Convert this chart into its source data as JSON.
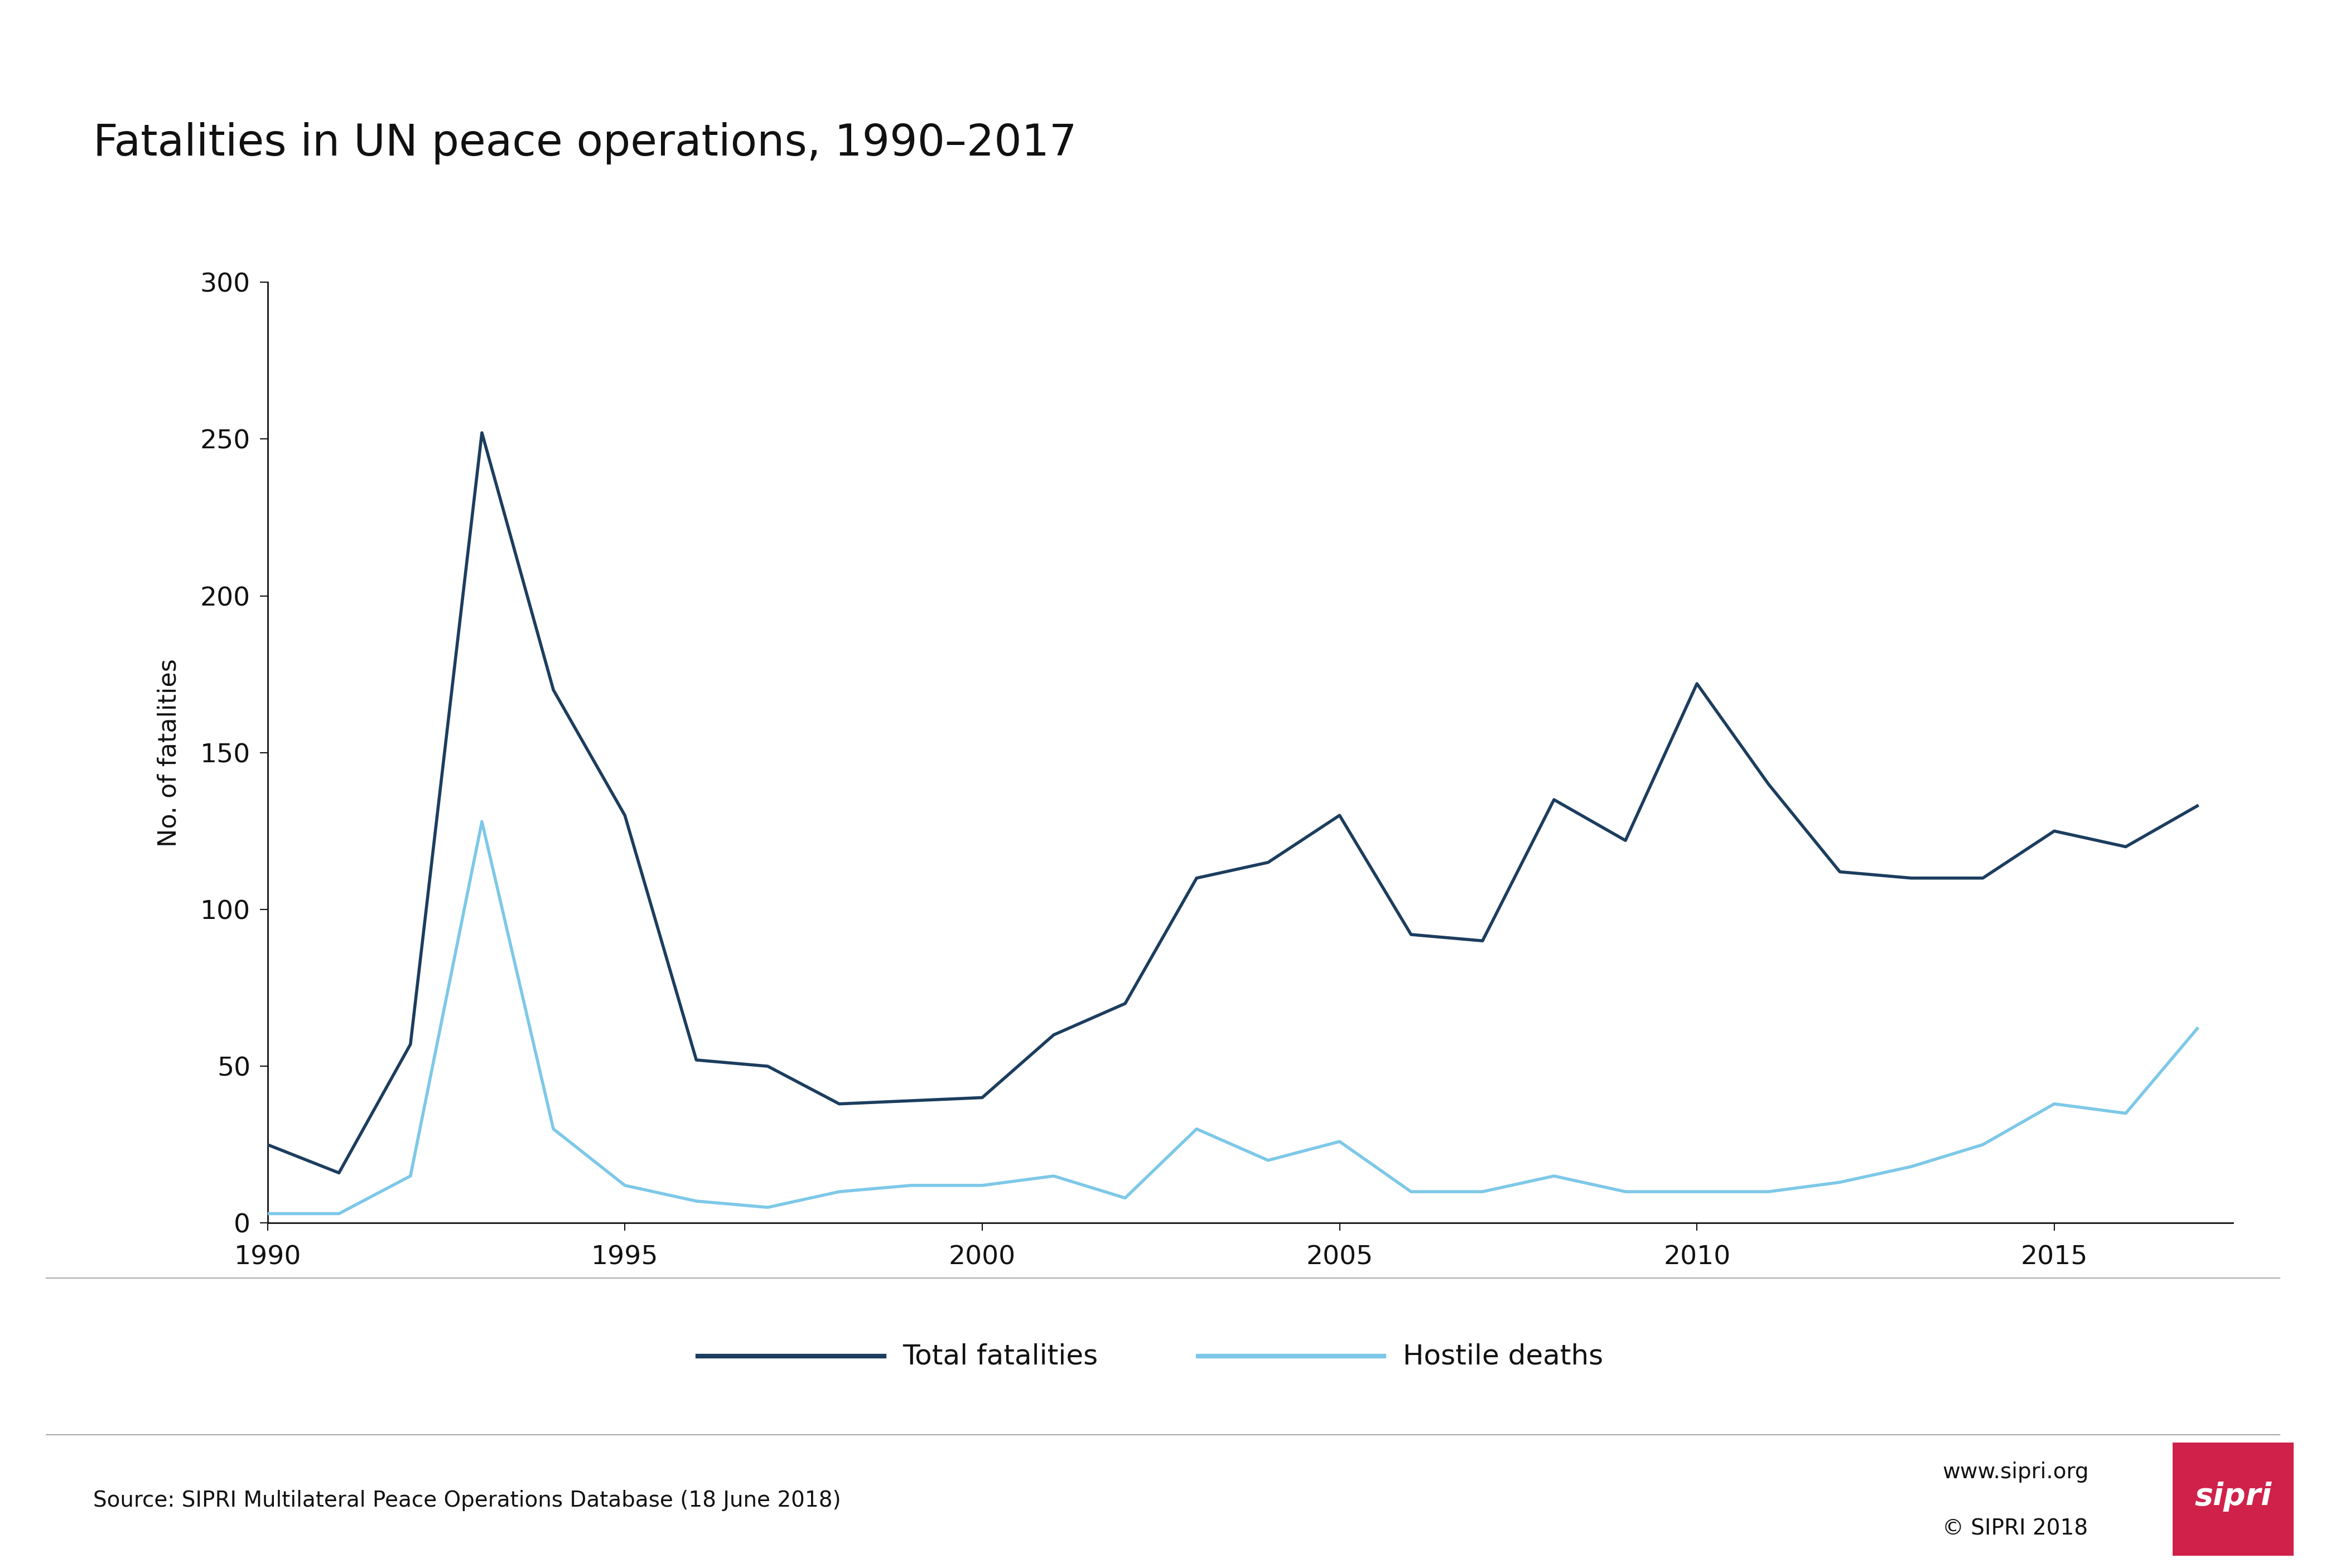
{
  "title": "Fatalities in UN peace operations, 1990–2017",
  "ylabel": "No. of fatalities",
  "years": [
    1990,
    1991,
    1992,
    1993,
    1994,
    1995,
    1996,
    1997,
    1998,
    1999,
    2000,
    2001,
    2002,
    2003,
    2004,
    2005,
    2006,
    2007,
    2008,
    2009,
    2010,
    2011,
    2012,
    2013,
    2014,
    2015,
    2016,
    2017
  ],
  "total_fatalities": [
    25,
    16,
    57,
    252,
    170,
    130,
    52,
    50,
    38,
    39,
    40,
    60,
    70,
    110,
    115,
    130,
    92,
    90,
    135,
    122,
    172,
    140,
    112,
    110,
    110,
    125,
    120,
    133
  ],
  "hostile_deaths": [
    3,
    3,
    15,
    128,
    30,
    12,
    7,
    5,
    10,
    12,
    12,
    15,
    8,
    30,
    20,
    26,
    10,
    10,
    15,
    10,
    10,
    10,
    13,
    18,
    25,
    38,
    35,
    62
  ],
  "total_color": "#1c3d5e",
  "hostile_color": "#7dc8e8",
  "background_color": "#ffffff",
  "ylim": [
    0,
    300
  ],
  "yticks": [
    0,
    50,
    100,
    150,
    200,
    250,
    300
  ],
  "xticks": [
    1990,
    1995,
    2000,
    2005,
    2010,
    2015
  ],
  "legend_total": "Total fatalities",
  "legend_hostile": "Hostile deaths",
  "source_text": "Source: SIPRI Multilateral Peace Operations Database (18 June 2018)",
  "website_text": "www.sipri.org",
  "copyright_text": "© SIPRI 2018",
  "sipri_logo_color": "#d0214a",
  "line_width": 4.0,
  "title_fontsize": 56,
  "axis_label_fontsize": 32,
  "tick_fontsize": 34,
  "legend_fontsize": 36,
  "footer_fontsize": 28,
  "separator_color": "#aaaaaa",
  "spine_color": "#111111",
  "tick_color": "#111111",
  "label_color": "#111111"
}
